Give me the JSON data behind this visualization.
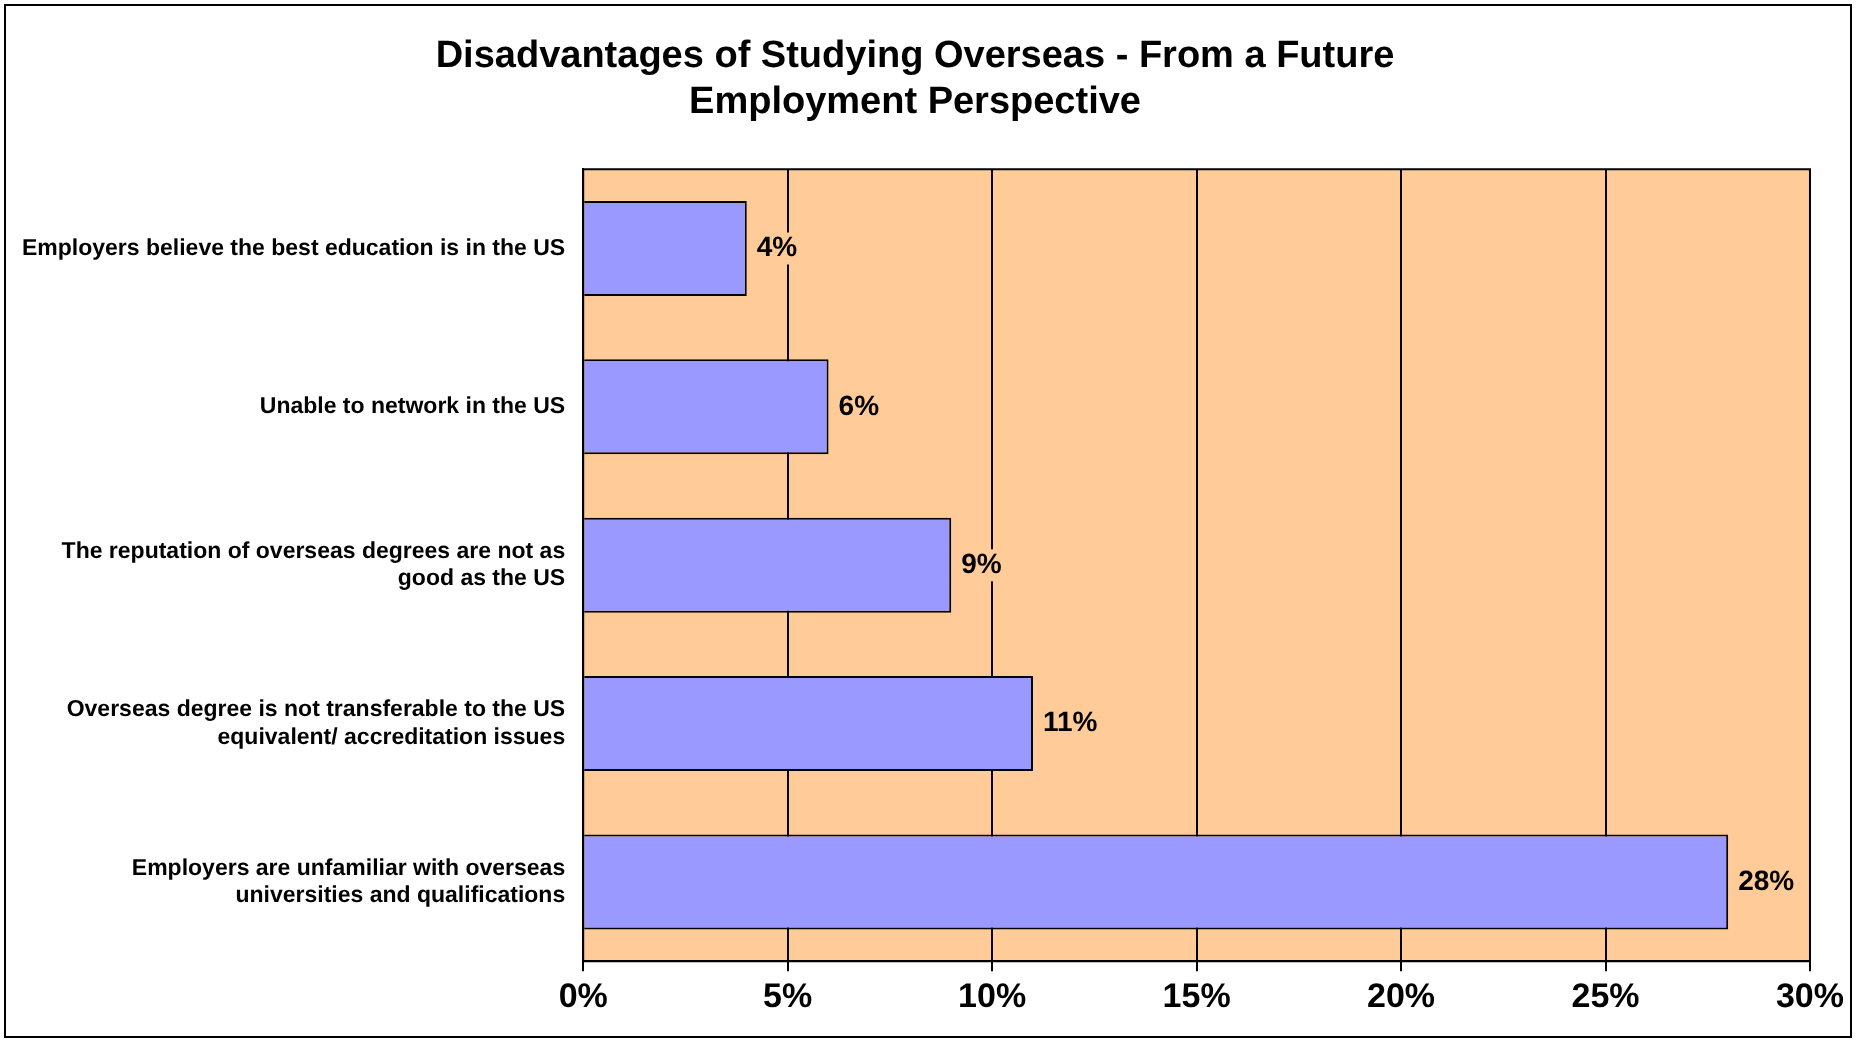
{
  "chart_data": {
    "type": "bar",
    "orientation": "horizontal",
    "title": "Disadvantages of Studying Overseas - From a Future\nEmployment Perspective",
    "categories": [
      "Employers believe the best education is in the US",
      "Unable to network in the US",
      "The reputation of overseas degrees are not as\ngood as the US",
      "Overseas degree is not transferable to the US\nequivalent/ accreditation issues",
      "Employers are unfamiliar with overseas\nuniversities and qualifications"
    ],
    "values": [
      4,
      6,
      9,
      11,
      28
    ],
    "value_labels": [
      "4%",
      "6%",
      "9%",
      "11%",
      "28%"
    ],
    "color": "#9999ff",
    "xlim": [
      0,
      30
    ],
    "xticks": [
      {
        "value": 0,
        "label": "0%"
      },
      {
        "value": 5,
        "label": "5%"
      },
      {
        "value": 10,
        "label": "10%"
      },
      {
        "value": 15,
        "label": "15%"
      },
      {
        "value": 20,
        "label": "20%"
      },
      {
        "value": 25,
        "label": "25%"
      },
      {
        "value": 30,
        "label": "30%"
      }
    ],
    "grid": "x",
    "legend": false
  }
}
